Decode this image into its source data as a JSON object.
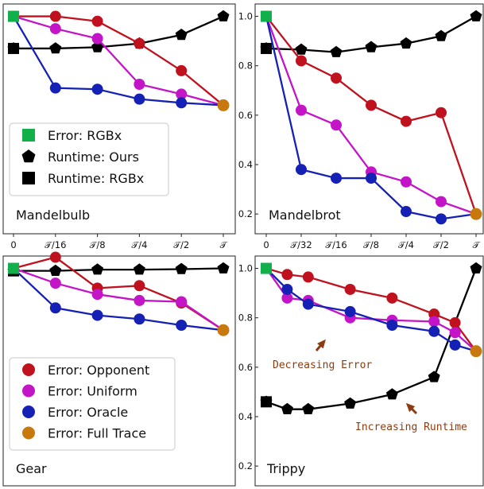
{
  "colors": {
    "opponent": "#c0121e",
    "uniform": "#c414c8",
    "oracle": "#1520b4",
    "full_trace": "#c7790e",
    "ours": "#000000",
    "rgbx_error": "#11b04a",
    "annotation": "#8a3d12"
  },
  "legends": {
    "top": [
      {
        "label": "Error: RGBx",
        "marker": "square",
        "color": "#11b04a"
      },
      {
        "label": "Runtime: Ours",
        "marker": "pentagon",
        "color": "#000000"
      },
      {
        "label": "Runtime: RGBx",
        "marker": "square",
        "color": "#000000"
      }
    ],
    "bottom": [
      {
        "label": "Error: Opponent",
        "marker": "circle",
        "color": "#c0121e"
      },
      {
        "label": "Error: Uniform",
        "marker": "circle",
        "color": "#c414c8"
      },
      {
        "label": "Error: Oracle",
        "marker": "circle",
        "color": "#1520b4"
      },
      {
        "label": "Error: Full Trace",
        "marker": "circle",
        "color": "#c7790e"
      }
    ]
  },
  "annotations": {
    "decreasing": "Decreasing Error",
    "increasing": "Increasing Runtime"
  },
  "chart_data": [
    {
      "type": "line",
      "title": "Mandelbulb",
      "x": [
        "0",
        "𝒯/16",
        "𝒯/8",
        "𝒯/4",
        "𝒯/2",
        "𝒯"
      ],
      "show_x_ticks": true,
      "yticks": [],
      "ylim": [
        0.12,
        1.05
      ],
      "series": [
        {
          "key": "ours",
          "values": [
            0.87,
            0.87,
            0.875,
            0.89,
            0.925,
            1.0
          ]
        },
        {
          "key": "opponent",
          "values": [
            1.0,
            1.0,
            0.98,
            0.89,
            0.78,
            0.64
          ]
        },
        {
          "key": "uniform",
          "values": [
            1.0,
            0.95,
            0.91,
            0.725,
            0.685,
            0.64
          ]
        },
        {
          "key": "oracle",
          "values": [
            1.0,
            0.71,
            0.705,
            0.665,
            0.65,
            0.64
          ]
        }
      ],
      "markers": {
        "rgbx_error": [
          0,
          1.0
        ],
        "rgbx_runtime": [
          0,
          0.87
        ],
        "full_trace": [
          5,
          0.64
        ]
      }
    },
    {
      "type": "line",
      "title": "Mandelbrot",
      "x": [
        "0",
        "𝒯/32",
        "𝒯/16",
        "𝒯/8",
        "𝒯/4",
        "𝒯/2",
        "𝒯"
      ],
      "show_x_ticks": true,
      "yticks": [
        "0.2",
        "0.4",
        "0.6",
        "0.8",
        "1.0"
      ],
      "ylim": [
        0.12,
        1.05
      ],
      "series": [
        {
          "key": "ours",
          "values": [
            0.87,
            0.865,
            0.855,
            0.875,
            0.89,
            0.92,
            1.0
          ]
        },
        {
          "key": "opponent",
          "values": [
            1.0,
            0.82,
            0.75,
            0.64,
            0.575,
            0.61,
            0.2
          ]
        },
        {
          "key": "uniform",
          "values": [
            1.0,
            0.62,
            0.56,
            0.37,
            0.33,
            0.25,
            0.2
          ]
        },
        {
          "key": "oracle",
          "values": [
            1.0,
            0.38,
            0.345,
            0.345,
            0.21,
            0.18,
            0.2
          ]
        }
      ],
      "markers": {
        "rgbx_error": [
          0,
          1.0
        ],
        "rgbx_runtime": [
          0,
          0.87
        ],
        "full_trace": [
          6,
          0.2
        ]
      }
    },
    {
      "type": "line",
      "title": "Gear",
      "x": [
        "0",
        "𝒯/16",
        "𝒯/8",
        "𝒯/4",
        "𝒯/2",
        "𝒯"
      ],
      "show_x_ticks": false,
      "yticks": [],
      "ylim": [
        0.12,
        1.05
      ],
      "series": [
        {
          "key": "ours",
          "values": [
            0.99,
            0.99,
            0.995,
            0.995,
            0.997,
            1.0
          ]
        },
        {
          "key": "opponent",
          "values": [
            1.0,
            1.045,
            0.92,
            0.93,
            0.86,
            0.75
          ]
        },
        {
          "key": "uniform",
          "values": [
            1.0,
            0.94,
            0.895,
            0.87,
            0.865,
            0.75
          ]
        },
        {
          "key": "oracle",
          "values": [
            1.0,
            0.84,
            0.81,
            0.795,
            0.77,
            0.75
          ]
        }
      ],
      "markers": {
        "rgbx_error": [
          0,
          1.0
        ],
        "rgbx_runtime": [
          0,
          0.99
        ],
        "full_trace": [
          5,
          0.75
        ]
      }
    },
    {
      "type": "line",
      "title": "Trippy",
      "x": [
        "0",
        "1",
        "2",
        "3",
        "4",
        "5",
        "6",
        "7",
        "8",
        "9",
        "10"
      ],
      "show_x_ticks": false,
      "yticks": [
        "0.2",
        "0.4",
        "0.6",
        "0.8",
        "1.0"
      ],
      "ylim": [
        0.12,
        1.05
      ],
      "series": [
        {
          "key": "ours",
          "values": [
            0.46,
            0.43,
            0.43,
            null,
            0.453,
            null,
            0.49,
            null,
            0.56,
            null,
            1.0
          ]
        },
        {
          "key": "opponent",
          "values": [
            1.0,
            0.975,
            0.965,
            null,
            0.915,
            null,
            0.88,
            null,
            0.815,
            0.78,
            0.665
          ]
        },
        {
          "key": "uniform",
          "values": [
            1.0,
            0.88,
            0.87,
            null,
            0.8,
            null,
            0.79,
            null,
            0.785,
            0.74,
            0.665
          ]
        },
        {
          "key": "oracle",
          "values": [
            1.0,
            0.915,
            0.855,
            null,
            0.825,
            null,
            0.77,
            null,
            0.745,
            0.69,
            0.665
          ]
        }
      ],
      "markers": {
        "rgbx_error": [
          0,
          1.0
        ],
        "rgbx_runtime": [
          0,
          0.46
        ],
        "full_trace": [
          10,
          0.665
        ]
      }
    }
  ]
}
